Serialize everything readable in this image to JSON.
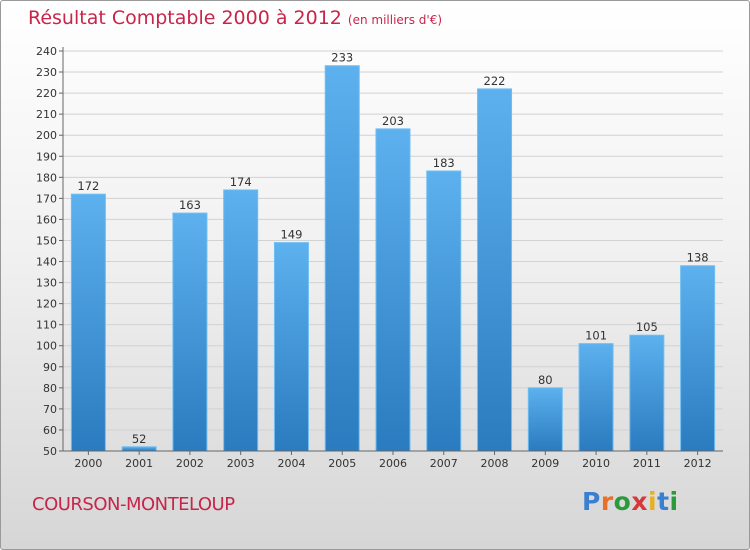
{
  "title": "Résultat Comptable 2000 à 2012",
  "subtitle": "(en milliers d'€)",
  "commune": "COURSON-MONTELOUP",
  "logo": {
    "letters": [
      "P",
      "r",
      "o",
      "x",
      "i",
      "t",
      "i"
    ],
    "colors": [
      "#3a7fd0",
      "#e8702a",
      "#2a9a3a",
      "#d43a3a",
      "#e8b020",
      "#3a7fd0",
      "#2a9a3a"
    ]
  },
  "colors": {
    "bar": "#4aa3e8",
    "bar_dark": "#2c7fc4",
    "title": "#c8254a"
  },
  "chart_data": {
    "type": "bar",
    "categories": [
      "2000",
      "2001",
      "2002",
      "2003",
      "2004",
      "2005",
      "2006",
      "2007",
      "2008",
      "2009",
      "2010",
      "2011",
      "2012"
    ],
    "values": [
      172,
      52,
      163,
      174,
      149,
      233,
      203,
      183,
      222,
      80,
      101,
      105,
      138
    ],
    "ylim": [
      50,
      240
    ],
    "yticks": [
      50,
      60,
      70,
      80,
      90,
      100,
      110,
      120,
      130,
      140,
      150,
      160,
      170,
      180,
      190,
      200,
      210,
      220,
      230,
      240
    ],
    "grid": true,
    "title": "Résultat Comptable 2000 à 2012",
    "xlabel": "",
    "ylabel": ""
  }
}
